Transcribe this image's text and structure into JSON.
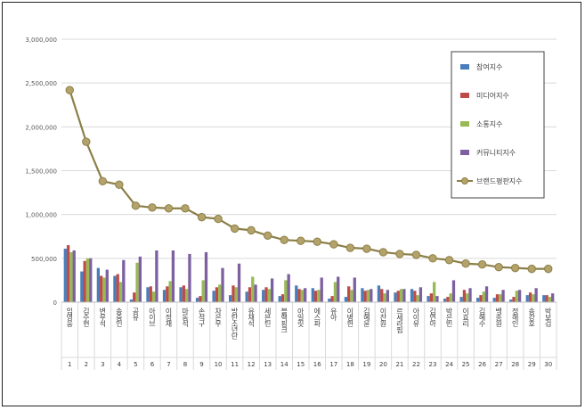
{
  "chart_data": {
    "type": "bar",
    "title": "",
    "xlabel": "",
    "ylabel": "",
    "ylim": [
      0,
      3000000
    ],
    "yticks": [
      0,
      500000,
      1000000,
      1500000,
      2000000,
      2500000,
      3000000
    ],
    "ytick_labels": [
      "0",
      "500,000",
      "1,000,000",
      "1,500,000",
      "2,000,000",
      "2,500,000",
      "3,000,000"
    ],
    "grid": true,
    "legend_position": "right",
    "categories": [
      "임영웅",
      "김수현",
      "변우석",
      "송중인",
      "공유",
      "아이브",
      "이정재",
      "마동석",
      "손석구",
      "차은우",
      "방탄소년단",
      "유재석",
      "세븐틴",
      "블랙핑크",
      "아일릿",
      "에스파",
      "유아",
      "이병헌",
      "김혜윤",
      "이찬원",
      "르세라핌",
      "아이유",
      "김연아",
      "박은빈",
      "이효리",
      "김혜수",
      "백종원",
      "정해인",
      "송강호",
      "박보검"
    ],
    "x_numbers": [
      "1",
      "2",
      "3",
      "4",
      "5",
      "6",
      "7",
      "8",
      "9",
      "10",
      "11",
      "12",
      "13",
      "14",
      "15",
      "16",
      "17",
      "18",
      "19",
      "20",
      "21",
      "22",
      "23",
      "24",
      "25",
      "26",
      "27",
      "28",
      "29",
      "30"
    ],
    "series": [
      {
        "name": "참여지수",
        "color": "#4a7ebb",
        "kind": "bar",
        "values": [
          610000,
          350000,
          390000,
          300000,
          30000,
          170000,
          140000,
          170000,
          50000,
          130000,
          80000,
          120000,
          140000,
          70000,
          190000,
          160000,
          40000,
          60000,
          160000,
          190000,
          110000,
          150000,
          70000,
          40000,
          60000,
          50000,
          50000,
          30000,
          80000,
          80000
        ]
      },
      {
        "name": "미디어지수",
        "color": "#be4b48",
        "kind": "bar",
        "values": [
          650000,
          470000,
          300000,
          320000,
          110000,
          180000,
          180000,
          190000,
          70000,
          170000,
          190000,
          170000,
          170000,
          90000,
          150000,
          130000,
          70000,
          180000,
          130000,
          150000,
          130000,
          130000,
          100000,
          60000,
          140000,
          80000,
          90000,
          60000,
          110000,
          80000
        ]
      },
      {
        "name": "소통지수",
        "color": "#98b954",
        "kind": "bar",
        "values": [
          570000,
          500000,
          280000,
          230000,
          450000,
          120000,
          240000,
          150000,
          250000,
          200000,
          170000,
          290000,
          150000,
          250000,
          140000,
          140000,
          230000,
          140000,
          140000,
          100000,
          150000,
          80000,
          230000,
          100000,
          100000,
          120000,
          90000,
          130000,
          90000,
          60000
        ]
      },
      {
        "name": "커뮤니티지수",
        "color": "#7d60a0",
        "kind": "bar",
        "values": [
          590000,
          500000,
          370000,
          480000,
          520000,
          590000,
          590000,
          550000,
          570000,
          390000,
          440000,
          200000,
          270000,
          320000,
          160000,
          280000,
          290000,
          280000,
          150000,
          140000,
          150000,
          170000,
          70000,
          250000,
          160000,
          180000,
          140000,
          140000,
          160000,
          100000
        ]
      },
      {
        "name": "브랜드평판지수",
        "color": "#8c7f48",
        "kind": "line",
        "values": [
          2420000,
          1830000,
          1380000,
          1340000,
          1100000,
          1080000,
          1070000,
          1070000,
          970000,
          950000,
          840000,
          820000,
          760000,
          710000,
          700000,
          690000,
          660000,
          620000,
          610000,
          570000,
          550000,
          540000,
          500000,
          480000,
          440000,
          430000,
          400000,
          390000,
          380000,
          380000
        ]
      }
    ]
  }
}
